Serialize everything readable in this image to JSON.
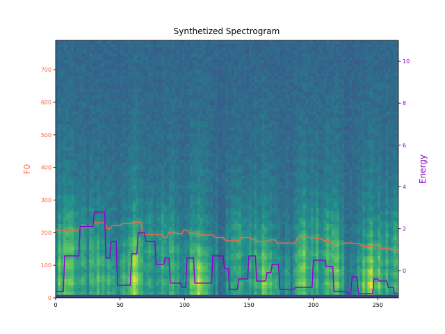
{
  "chart_data": {
    "type": "line",
    "title": "Synthetized Spectrogram",
    "background": "heatmap",
    "colormap": "viridis",
    "x_ticks": [
      0,
      50,
      100,
      150,
      200,
      250
    ],
    "xlim": [
      0,
      266
    ],
    "left_axis": {
      "label": "F0",
      "color": "#ff6347",
      "ylim": [
        0,
        790
      ],
      "ticks": [
        0,
        100,
        200,
        300,
        400,
        500,
        600,
        700
      ]
    },
    "right_axis": {
      "label": "Energy",
      "color": "#9400d3",
      "ylim": [
        -1.3,
        11
      ],
      "ticks": [
        0,
        2,
        4,
        6,
        8,
        10
      ]
    },
    "series": [
      {
        "axis": "left",
        "color": "#ff6347",
        "points": [
          [
            0,
            208
          ],
          [
            6,
            208
          ],
          [
            8,
            205
          ],
          [
            16,
            205
          ],
          [
            18,
            215
          ],
          [
            28,
            215
          ],
          [
            30,
            230
          ],
          [
            38,
            230
          ],
          [
            40,
            212
          ],
          [
            42,
            212
          ],
          [
            44,
            222
          ],
          [
            50,
            222
          ],
          [
            52,
            228
          ],
          [
            60,
            228
          ],
          [
            62,
            232
          ],
          [
            66,
            232
          ],
          [
            68,
            195
          ],
          [
            82,
            195
          ],
          [
            84,
            185
          ],
          [
            86,
            185
          ],
          [
            88,
            200
          ],
          [
            98,
            196
          ],
          [
            99,
            208
          ],
          [
            102,
            208
          ],
          [
            104,
            198
          ],
          [
            110,
            198
          ],
          [
            112,
            193
          ],
          [
            122,
            193
          ],
          [
            124,
            185
          ],
          [
            130,
            185
          ],
          [
            132,
            175
          ],
          [
            142,
            175
          ],
          [
            144,
            185
          ],
          [
            150,
            185
          ],
          [
            152,
            180
          ],
          [
            154,
            180
          ],
          [
            156,
            172
          ],
          [
            164,
            172
          ],
          [
            166,
            178
          ],
          [
            170,
            178
          ],
          [
            172,
            168
          ],
          [
            186,
            168
          ],
          [
            188,
            186
          ],
          [
            200,
            186
          ],
          [
            202,
            182
          ],
          [
            206,
            182
          ],
          [
            208,
            175
          ],
          [
            212,
            175
          ],
          [
            214,
            166
          ],
          [
            222,
            166
          ],
          [
            224,
            168
          ],
          [
            230,
            168
          ],
          [
            232,
            166
          ],
          [
            236,
            166
          ],
          [
            238,
            158
          ],
          [
            246,
            158
          ],
          [
            248,
            162
          ],
          [
            250,
            162
          ],
          [
            252,
            152
          ],
          [
            258,
            152
          ],
          [
            260,
            148
          ],
          [
            266,
            148
          ]
        ]
      },
      {
        "axis": "right",
        "color": "#9400d3",
        "points": [
          [
            0,
            -1
          ],
          [
            6,
            -1
          ],
          [
            7,
            0.7
          ],
          [
            18,
            0.7
          ],
          [
            19,
            2.1
          ],
          [
            29,
            2.1
          ],
          [
            30,
            2.8
          ],
          [
            38,
            2.8
          ],
          [
            39,
            0.6
          ],
          [
            42,
            0.6
          ],
          [
            43,
            1.4
          ],
          [
            47,
            1.4
          ],
          [
            48,
            -0.7
          ],
          [
            58,
            -0.7
          ],
          [
            59,
            0.8
          ],
          [
            63,
            0.8
          ],
          [
            64,
            1.8
          ],
          [
            69,
            1.8
          ],
          [
            70,
            1.4
          ],
          [
            77,
            1.4
          ],
          [
            78,
            0.3
          ],
          [
            84,
            0.3
          ],
          [
            85,
            0.6
          ],
          [
            88,
            0.6
          ],
          [
            89,
            -0.6
          ],
          [
            97,
            -0.6
          ],
          [
            98,
            -0.8
          ],
          [
            101,
            -0.8
          ],
          [
            102,
            0.6
          ],
          [
            107,
            0.6
          ],
          [
            108,
            -0.6
          ],
          [
            121,
            -0.6
          ],
          [
            122,
            0.7
          ],
          [
            130,
            0.7
          ],
          [
            131,
            0.1
          ],
          [
            134,
            0.1
          ],
          [
            135,
            -0.9
          ],
          [
            141,
            -0.9
          ],
          [
            142,
            -0.4
          ],
          [
            149,
            -0.4
          ],
          [
            150,
            0.7
          ],
          [
            155,
            0.7
          ],
          [
            156,
            -0.5
          ],
          [
            163,
            -0.5
          ],
          [
            164,
            -0.1
          ],
          [
            167,
            -0.1
          ],
          [
            168,
            0.3
          ],
          [
            173,
            0.3
          ],
          [
            174,
            -0.9
          ],
          [
            185,
            -0.9
          ],
          [
            186,
            -0.8
          ],
          [
            199,
            -0.8
          ],
          [
            200,
            0.5
          ],
          [
            209,
            0.5
          ],
          [
            210,
            0.2
          ],
          [
            215,
            0.2
          ],
          [
            216,
            -1
          ],
          [
            226,
            -1
          ],
          [
            227,
            -1.1
          ],
          [
            229,
            -1.1
          ],
          [
            230,
            -0.3
          ],
          [
            234,
            -0.3
          ],
          [
            235,
            -1.1
          ],
          [
            246,
            -1.1
          ],
          [
            247,
            -0.4
          ],
          [
            250,
            -0.4
          ],
          [
            251,
            -0.5
          ],
          [
            257,
            -0.5
          ],
          [
            258,
            -0.8
          ],
          [
            262,
            -0.8
          ],
          [
            263,
            -1.1
          ],
          [
            266,
            -1.1
          ]
        ]
      }
    ]
  }
}
